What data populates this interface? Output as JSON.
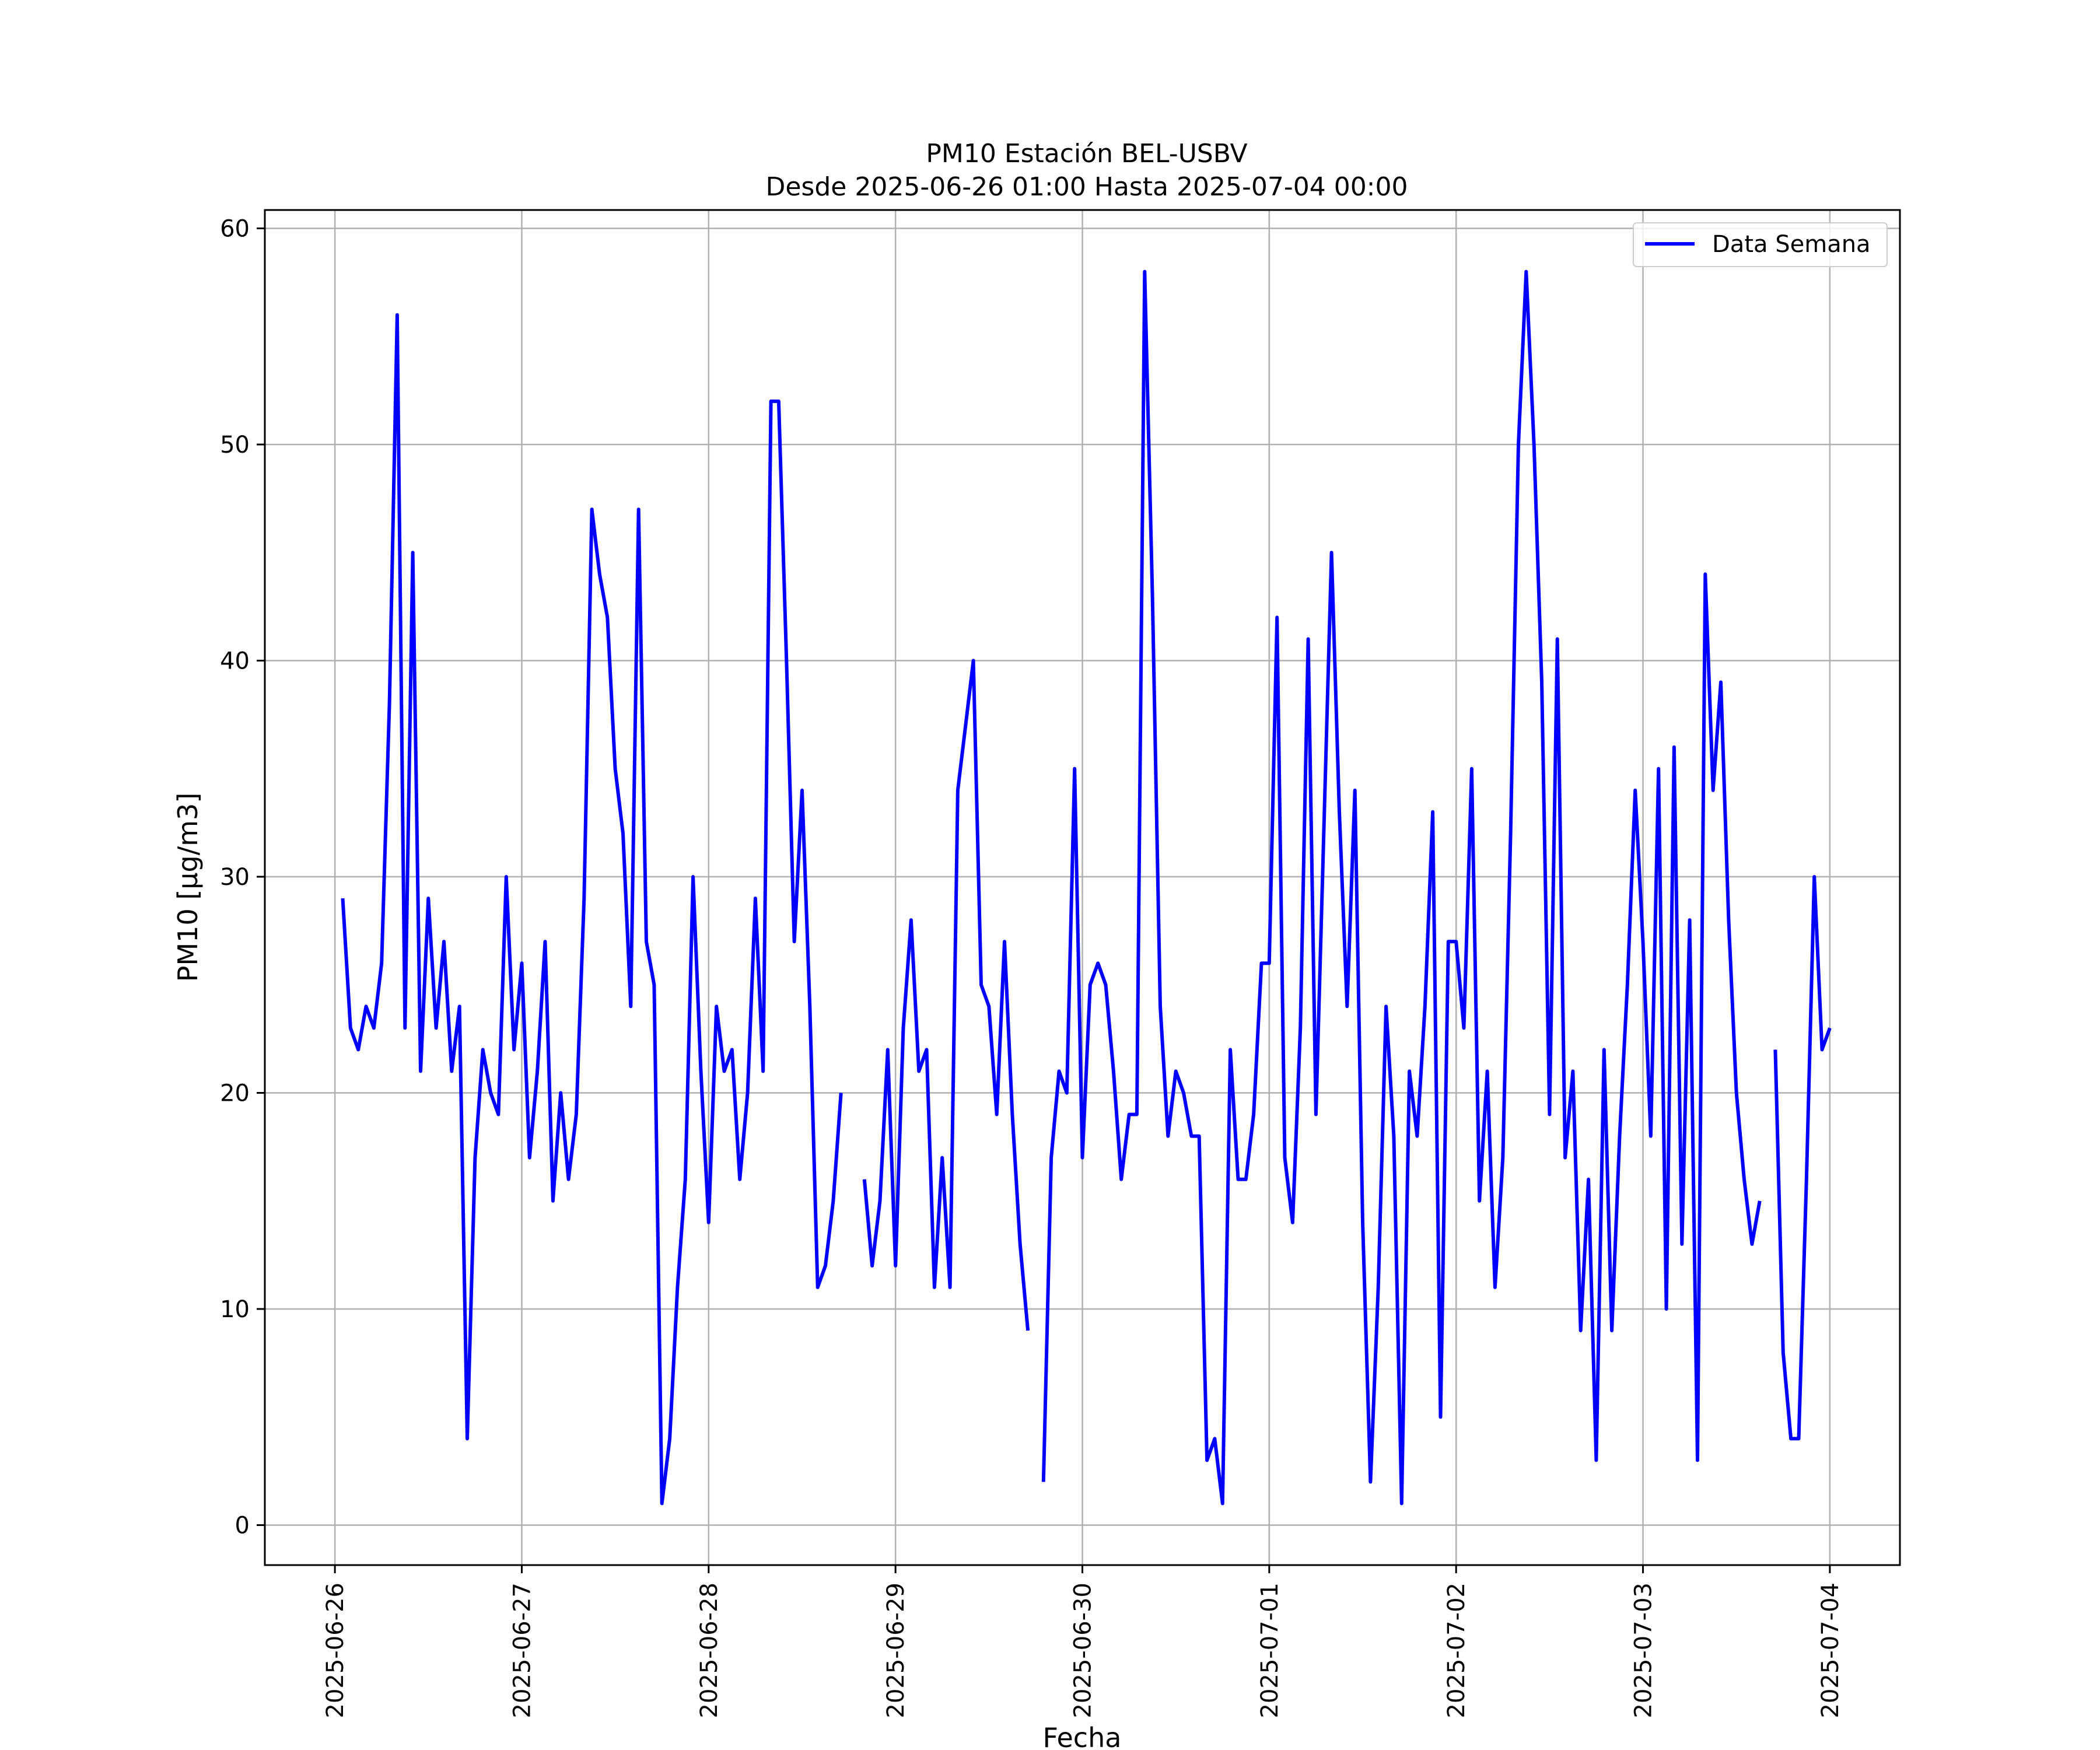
{
  "chart_data": {
    "type": "line",
    "title": "PM10 Estación BEL-USBV",
    "subtitle": "Desde 2025-06-26 01:00 Hasta 2025-07-04 00:00",
    "xlabel": "Fecha",
    "ylabel": "PM10 [μg/m3]",
    "xlim": [
      "2025-06-25T15:00",
      "2025-07-04T09:00"
    ],
    "ylim": [
      -1.85,
      60.85
    ],
    "x_ticks": [
      "2025-06-26",
      "2025-06-27",
      "2025-06-28",
      "2025-06-29",
      "2025-06-30",
      "2025-07-01",
      "2025-07-02",
      "2025-07-03",
      "2025-07-04"
    ],
    "y_ticks": [
      0,
      10,
      20,
      30,
      40,
      50,
      60
    ],
    "grid": true,
    "legend_position": "top-right",
    "series": [
      {
        "name": "Data Semana",
        "color": "#0000ff",
        "start": "2025-06-26T01:00",
        "interval_hours": 1,
        "values": [
          29,
          23,
          22,
          24,
          23,
          26,
          38,
          56,
          23,
          45,
          21,
          29,
          23,
          27,
          21,
          24,
          4,
          17,
          22,
          20,
          19,
          30,
          22,
          26,
          17,
          21,
          27,
          15,
          20,
          16,
          19,
          29,
          47,
          44,
          42,
          35,
          32,
          24,
          47,
          27,
          25,
          1,
          4,
          11,
          16,
          30,
          21,
          14,
          24,
          21,
          22,
          16,
          20,
          29,
          21,
          52,
          52,
          40,
          27,
          34,
          24,
          11,
          12,
          15,
          20,
          null,
          null,
          16,
          12,
          15,
          22,
          12,
          23,
          28,
          21,
          22,
          11,
          17,
          11,
          34,
          37,
          40,
          25,
          24,
          19,
          27,
          19,
          13,
          9,
          null,
          2,
          17,
          21,
          20,
          35,
          17,
          25,
          26,
          25,
          21,
          16,
          19,
          19,
          58,
          43,
          24,
          18,
          21,
          20,
          18,
          18,
          3,
          4,
          1,
          22,
          16,
          16,
          19,
          26,
          26,
          42,
          17,
          14,
          23,
          41,
          19,
          32,
          45,
          33,
          24,
          34,
          14,
          2,
          11,
          24,
          18,
          1,
          21,
          18,
          24,
          33,
          5,
          27,
          27,
          23,
          35,
          15,
          21,
          11,
          17,
          32,
          50,
          58,
          50,
          39,
          19,
          41,
          17,
          21,
          9,
          16,
          3,
          22,
          9,
          18,
          25,
          34,
          27,
          18,
          35,
          10,
          36,
          13,
          28,
          3,
          44,
          34,
          39,
          28,
          20,
          16,
          13,
          15,
          null,
          22,
          8,
          4,
          4,
          16,
          30,
          22,
          23
        ]
      }
    ]
  }
}
